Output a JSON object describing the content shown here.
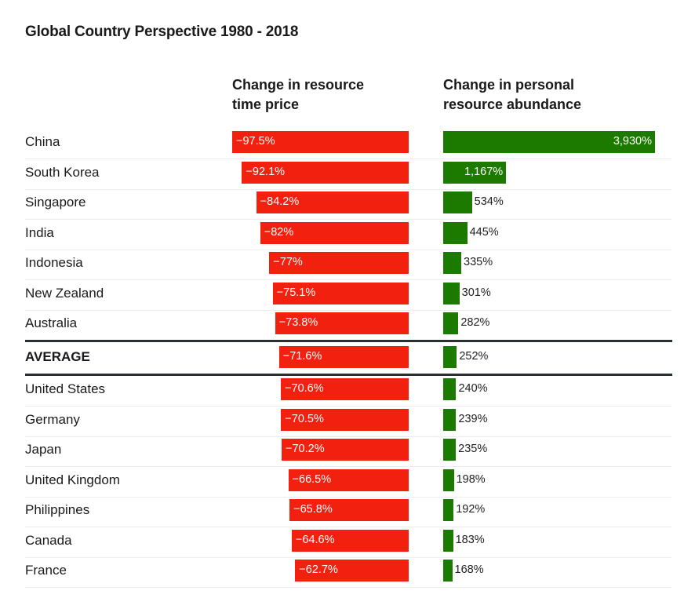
{
  "chart_data": {
    "type": "bar",
    "title": "Global Country Perspective 1980 - 2018",
    "series": [
      {
        "name": "Change in resource time price",
        "unit": "%",
        "color": "#f2200e",
        "values": [
          -97.5,
          -92.1,
          -84.2,
          -82,
          -77,
          -75.1,
          -73.8,
          -71.6,
          -70.6,
          -70.5,
          -70.2,
          -66.5,
          -65.8,
          -64.6,
          -62.7
        ],
        "labels": [
          "−97.5%",
          "−92.1%",
          "−84.2%",
          "−82%",
          "−77%",
          "−75.1%",
          "−73.8%",
          "−71.6%",
          "−70.6%",
          "−70.5%",
          "−70.2%",
          "−66.5%",
          "−65.8%",
          "−64.6%",
          "−62.7%"
        ]
      },
      {
        "name": "Change in personal resource abundance",
        "unit": "%",
        "color": "#1c7a00",
        "values": [
          3930,
          1167,
          534,
          445,
          335,
          301,
          282,
          252,
          240,
          239,
          235,
          198,
          192,
          183,
          168
        ],
        "labels": [
          "3,930%",
          "1,167%",
          "534%",
          "445%",
          "335%",
          "301%",
          "282%",
          "252%",
          "240%",
          "239%",
          "235%",
          "198%",
          "192%",
          "183%",
          "168%"
        ]
      }
    ],
    "categories": [
      "China",
      "South Korea",
      "Singapore",
      "India",
      "Indonesia",
      "New Zealand",
      "Australia",
      "AVERAGE",
      "United States",
      "Germany",
      "Japan",
      "United Kingdom",
      "Philippines",
      "Canada",
      "France"
    ],
    "highlight_category": "AVERAGE",
    "headers": {
      "col1": [
        "Change in resource",
        "time price"
      ],
      "col2": [
        "Change in personal",
        "resource abundance"
      ]
    },
    "xlabel": "",
    "ylabel": "",
    "grid": false,
    "legend": "none"
  }
}
